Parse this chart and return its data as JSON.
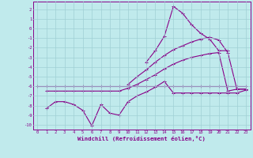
{
  "xlabel": "Windchill (Refroidissement éolien,°C)",
  "bg_color": "#c0eaec",
  "grid_color": "#a0d0d4",
  "line_color": "#880088",
  "xlim": [
    -0.5,
    23.5
  ],
  "ylim": [
    -10.5,
    2.8
  ],
  "yticks": [
    2,
    1,
    0,
    -1,
    -2,
    -3,
    -4,
    -5,
    -6,
    -7,
    -8,
    -9,
    -10
  ],
  "xticks": [
    0,
    1,
    2,
    3,
    4,
    5,
    6,
    7,
    8,
    9,
    10,
    11,
    12,
    13,
    14,
    15,
    16,
    17,
    18,
    19,
    20,
    21,
    22,
    23
  ],
  "series_flat_x": [
    0,
    1,
    2,
    3,
    4,
    5,
    6,
    7,
    8,
    9,
    10,
    11,
    12,
    13,
    14,
    15,
    16,
    17,
    18,
    19,
    20,
    21,
    22,
    23
  ],
  "series_flat_y": [
    -6,
    -6,
    -6,
    -6,
    -6,
    -6,
    -6,
    -6,
    -6,
    -6,
    -6,
    -6,
    -6,
    -6,
    -6,
    -6,
    -6,
    -6,
    -6,
    -6,
    -6,
    -6,
    -6,
    -6
  ],
  "series_lower_x": [
    1,
    2,
    3,
    4,
    5,
    6,
    7,
    8,
    9,
    10,
    11,
    12,
    13,
    14,
    15,
    16,
    17,
    18,
    19,
    20,
    21,
    22,
    23
  ],
  "series_lower_y": [
    -8.3,
    -7.6,
    -7.6,
    -7.9,
    -8.5,
    -10.1,
    -7.9,
    -8.8,
    -9.0,
    -7.6,
    -7.0,
    -6.6,
    -6.1,
    -5.5,
    -6.7,
    -6.7,
    -6.7,
    -6.7,
    -6.7,
    -6.7,
    -6.7,
    -6.7,
    -6.4
  ],
  "series_mid_x": [
    1,
    2,
    3,
    4,
    5,
    6,
    7,
    8,
    9,
    10,
    11,
    12,
    13,
    14,
    15,
    16,
    17,
    18,
    19,
    20,
    21,
    22,
    23
  ],
  "series_mid_y": [
    -6.5,
    -6.5,
    -6.5,
    -6.5,
    -6.5,
    -6.5,
    -6.5,
    -6.5,
    -6.5,
    -6.2,
    -5.8,
    -5.3,
    -4.8,
    -4.2,
    -3.7,
    -3.3,
    -3.0,
    -2.8,
    -2.6,
    -2.5,
    -6.5,
    -6.3,
    -6.3
  ],
  "series_rise_x": [
    10,
    11,
    12,
    13,
    14,
    15,
    16,
    17,
    18,
    19,
    20,
    21,
    22,
    23
  ],
  "series_rise_y": [
    -5.8,
    -5.0,
    -4.3,
    -3.5,
    -2.8,
    -2.2,
    -1.8,
    -1.4,
    -1.1,
    -0.9,
    -1.2,
    -2.5,
    -6.3,
    -6.3
  ],
  "series_peak_x": [
    12,
    13,
    14,
    15,
    16,
    17,
    18,
    19,
    20,
    21
  ],
  "series_peak_y": [
    -3.5,
    -2.3,
    -0.8,
    2.3,
    1.6,
    0.4,
    -0.5,
    -1.1,
    -2.3,
    -2.3
  ]
}
